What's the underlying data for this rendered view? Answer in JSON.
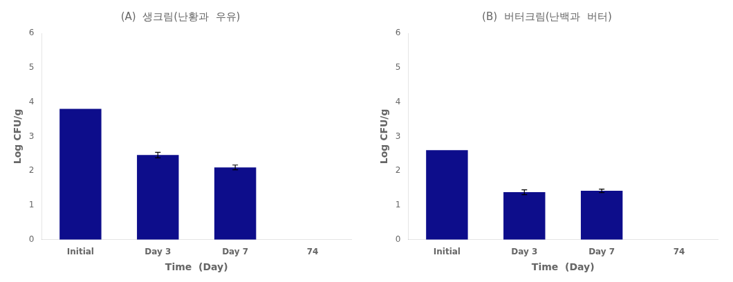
{
  "chart_data": [
    {
      "type": "bar",
      "title": "(A)  생크림(난황과  우유)",
      "categories": [
        "Initial",
        "Day 3",
        "Day 7",
        "74"
      ],
      "values": [
        3.8,
        2.46,
        2.1,
        0
      ],
      "errors": [
        0,
        0.08,
        0.07,
        0
      ],
      "color": "#0D0D8B",
      "xlabel": "Time  (Day)",
      "ylabel": "Log CFU/g",
      "ylim": [
        0,
        6
      ],
      "yticks": [
        0,
        1,
        2,
        3,
        4,
        5,
        6
      ],
      "grid": false
    },
    {
      "type": "bar",
      "title": "(B)  버터크림(난백과  버터)",
      "categories": [
        "Initial",
        "Day 3",
        "Day 7",
        "74"
      ],
      "values": [
        2.6,
        1.38,
        1.42,
        0
      ],
      "errors": [
        0,
        0.07,
        0.05,
        0
      ],
      "color": "#0D0D8B",
      "xlabel": "Time  (Day)",
      "ylabel": "Log CFU/g",
      "ylim": [
        0,
        6
      ],
      "yticks": [
        0,
        1,
        2,
        3,
        4,
        5,
        6
      ],
      "grid": false
    }
  ]
}
